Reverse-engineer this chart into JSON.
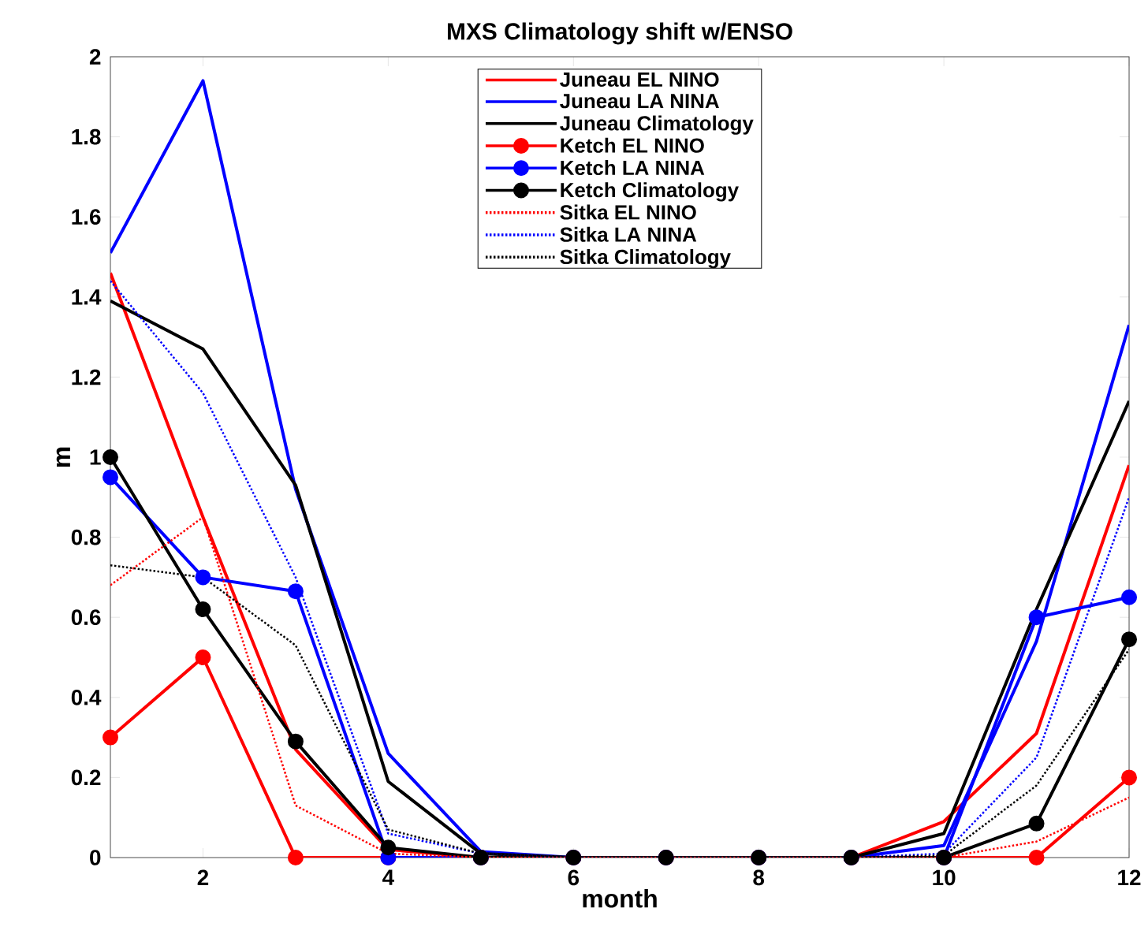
{
  "chart_data": {
    "type": "line",
    "title": "MXS Climatology shift w/ENSO",
    "xlabel": "month",
    "ylabel": "m",
    "x": [
      1,
      2,
      3,
      4,
      5,
      6,
      7,
      8,
      9,
      10,
      11,
      12
    ],
    "xlim": [
      1,
      12
    ],
    "xticks": [
      2,
      4,
      6,
      8,
      10,
      12
    ],
    "ylim": [
      0,
      2
    ],
    "yticks": [
      0,
      0.2,
      0.4,
      0.6,
      0.8,
      1,
      1.2,
      1.4,
      1.6,
      1.8,
      2
    ],
    "legend": "top",
    "grid": false,
    "series": [
      {
        "name": "Juneau EL NINO",
        "color": "#ff0000",
        "line_style": "solid",
        "marker": "none",
        "values": [
          1.46,
          0.85,
          0.27,
          0.02,
          0,
          0,
          0,
          0,
          0,
          0.09,
          0.31,
          0.98
        ]
      },
      {
        "name": "Juneau LA NINA",
        "color": "#0000ff",
        "line_style": "solid",
        "marker": "none",
        "values": [
          1.51,
          1.94,
          0.92,
          0.26,
          0.015,
          0,
          0,
          0,
          0,
          0.03,
          0.54,
          1.33
        ]
      },
      {
        "name": "Juneau Climatology",
        "color": "#000000",
        "line_style": "solid",
        "marker": "none",
        "values": [
          1.39,
          1.27,
          0.93,
          0.19,
          0.01,
          0,
          0,
          0,
          0,
          0.06,
          0.62,
          1.14
        ]
      },
      {
        "name": "Ketch EL NINO",
        "color": "#ff0000",
        "line_style": "solid",
        "marker": "circle",
        "values": [
          0.3,
          0.5,
          0,
          0,
          0,
          0,
          0,
          0,
          0,
          0,
          0,
          0.2
        ]
      },
      {
        "name": "Ketch LA NINA",
        "color": "#0000ff",
        "line_style": "solid",
        "marker": "circle",
        "values": [
          0.95,
          0.7,
          0.665,
          0,
          0,
          0,
          0,
          0,
          0,
          0,
          0.6,
          0.65
        ]
      },
      {
        "name": "Ketch Climatology",
        "color": "#000000",
        "line_style": "solid",
        "marker": "circle",
        "values": [
          1.0,
          0.62,
          0.29,
          0.025,
          0,
          0,
          0,
          0,
          0,
          0,
          0.085,
          0.545
        ]
      },
      {
        "name": "Sitka EL NINO",
        "color": "#ff0000",
        "line_style": "dotted",
        "marker": "none",
        "values": [
          0.68,
          0.85,
          0.13,
          0.01,
          0,
          0,
          0,
          0,
          0,
          0,
          0.04,
          0.15
        ]
      },
      {
        "name": "Sitka LA NINA",
        "color": "#0000ff",
        "line_style": "dotted",
        "marker": "none",
        "values": [
          1.44,
          1.16,
          0.7,
          0.06,
          0.01,
          0,
          0,
          0,
          0,
          0.01,
          0.25,
          0.9
        ]
      },
      {
        "name": "Sitka Climatology",
        "color": "#000000",
        "line_style": "dotted",
        "marker": "none",
        "values": [
          0.73,
          0.7,
          0.53,
          0.07,
          0.01,
          0,
          0,
          0,
          0,
          0.005,
          0.18,
          0.52
        ]
      }
    ]
  }
}
